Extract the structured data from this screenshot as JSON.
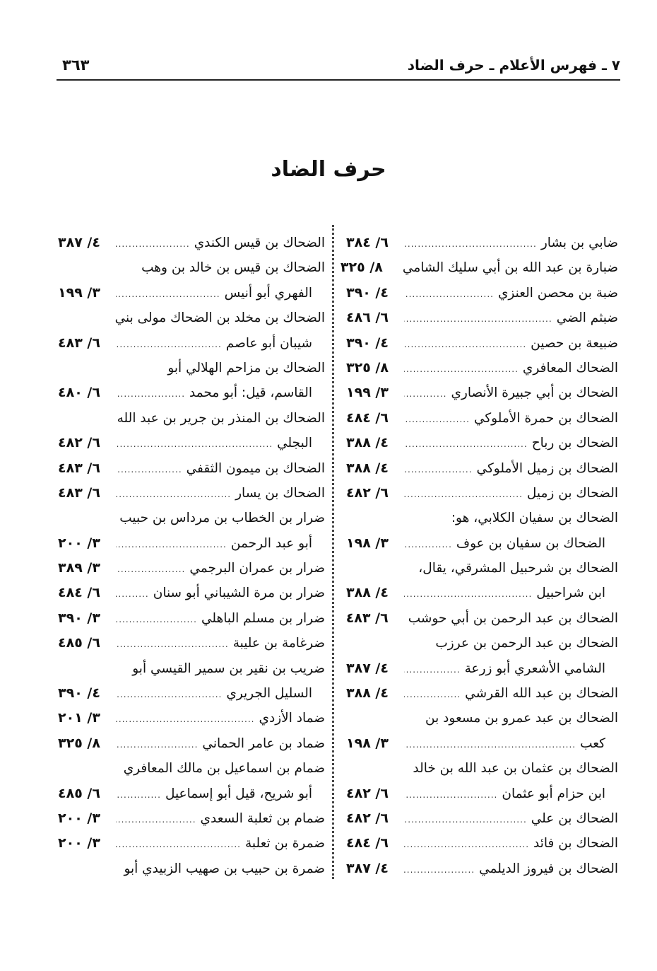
{
  "header": {
    "running_title": "٧ ـ فهرس الأعلام ـ حرف الضاد",
    "page_number": "٣٦٣"
  },
  "section_title": "حرف الضاد",
  "right_column": [
    {
      "text": "ضابي بن بشار",
      "ref": "٦/ ٣٨٤"
    },
    {
      "text": "ضبارة بن عبد الله بن أبي سليك الشامي",
      "ref": "٨/ ٣٢٥"
    },
    {
      "text": "ضبة بن محصن العنزي",
      "ref": "٤/ ٣٩٠"
    },
    {
      "text": "ضبثم الضي",
      "ref": "٦/ ٤٨٦"
    },
    {
      "text": "ضبيعة بن حصين",
      "ref": "٤/ ٣٩٠"
    },
    {
      "text": "الضحاك المعافري",
      "ref": "٨/ ٣٢٥"
    },
    {
      "text": "الضحاك بن أبي جبيرة الأنصاري",
      "ref": "٣/ ١٩٩"
    },
    {
      "text": "الضحاك بن حمرة الأملوكي",
      "ref": "٦/ ٤٨٤"
    },
    {
      "text": "الضحاك بن رباح",
      "ref": "٤/ ٣٨٨"
    },
    {
      "text": "الضحاك بن زميل الأملوكي",
      "ref": "٤/ ٣٨٨"
    },
    {
      "text": "الضحاك بن زميل",
      "ref": "٦/ ٤٨٢"
    },
    {
      "text": "الضحاك بن سفيان الكلابي، هو:",
      "ref": ""
    },
    {
      "text": "الضحاك بن سفيان بن عوف",
      "ref": "٣/ ١٩٨",
      "indent": true
    },
    {
      "text": "الضحاك بن شرحبيل المشرقي، يقال،",
      "ref": ""
    },
    {
      "text": "ابن شراحبيل",
      "ref": "٤/ ٣٨٨",
      "indent": true
    },
    {
      "text": "الضحاك بن عبد الرحمن بن أبي حوشب",
      "ref": "٦/ ٤٨٣"
    },
    {
      "text": "الضحاك بن عبد الرحمن بن عرزب",
      "ref": ""
    },
    {
      "text": "الشامي الأشعري أبو زرعة",
      "ref": "٤/ ٣٨٧",
      "indent": true
    },
    {
      "text": "الضحاك بن عبد الله القرشي",
      "ref": "٤/ ٣٨٨"
    },
    {
      "text": "الضحاك بن عبد عمرو بن مسعود بن",
      "ref": ""
    },
    {
      "text": "كعب",
      "ref": "٣/ ١٩٨",
      "indent": true
    },
    {
      "text": "الضحاك بن عثمان بن عبد الله بن خالد",
      "ref": ""
    },
    {
      "text": "ابن حزام أبو عثمان",
      "ref": "٦/ ٤٨٢",
      "indent": true
    },
    {
      "text": "الضحاك بن علي",
      "ref": "٦/ ٤٨٢"
    },
    {
      "text": "الضحاك بن فائد",
      "ref": "٦/ ٤٨٤"
    },
    {
      "text": "الضحاك بن فيروز الديلمي",
      "ref": "٤/ ٣٨٧"
    }
  ],
  "left_column": [
    {
      "text": "الضحاك بن قيس الكندي",
      "ref": "٤/ ٣٨٧"
    },
    {
      "text": "الضحاك بن قيس بن خالد بن وهب",
      "ref": ""
    },
    {
      "text": "الفهري أبو أنيس",
      "ref": "٣/ ١٩٩",
      "indent": true
    },
    {
      "text": "الضحاك بن مخلد بن الضحاك مولى بني",
      "ref": ""
    },
    {
      "text": "شيبان أبو عاصم",
      "ref": "٦/ ٤٨٣",
      "indent": true
    },
    {
      "text": "الضحاك بن مزاحم الهلالي أبو",
      "ref": ""
    },
    {
      "text": "القاسم، قيل: أبو محمد",
      "ref": "٦/ ٤٨٠",
      "indent": true
    },
    {
      "text": "الضحاك بن المنذر بن جرير بن عبد الله",
      "ref": ""
    },
    {
      "text": "البجلي",
      "ref": "٦/ ٤٨٢",
      "indent": true
    },
    {
      "text": "الضحاك بن ميمون الثقفي",
      "ref": "٦/ ٤٨٣"
    },
    {
      "text": "الضحاك بن يسار",
      "ref": "٦/ ٤٨٣"
    },
    {
      "text": "ضرار بن الخطاب بن مرداس بن حبيب",
      "ref": ""
    },
    {
      "text": "أبو عبد الرحمن",
      "ref": "٣/ ٢٠٠",
      "indent": true
    },
    {
      "text": "ضرار بن عمران البرجمي",
      "ref": "٣/ ٣٨٩"
    },
    {
      "text": "ضرار بن مرة الشيباني أبو سنان",
      "ref": "٦/ ٤٨٤"
    },
    {
      "text": "ضرار بن مسلم الباهلي",
      "ref": "٣/ ٣٩٠"
    },
    {
      "text": "ضرغامة بن عليبة",
      "ref": "٦/ ٤٨٥"
    },
    {
      "text": "ضريب بن نقير بن سمير القيسي أبو",
      "ref": ""
    },
    {
      "text": "السليل الجريري",
      "ref": "٤/ ٣٩٠",
      "indent": true
    },
    {
      "text": "ضماد الأزدي",
      "ref": "٣/ ٢٠١"
    },
    {
      "text": "ضماد بن عامر الحماني",
      "ref": "٨/ ٣٢٥"
    },
    {
      "text": "ضمام بن اسماعيل بن مالك المعافري",
      "ref": ""
    },
    {
      "text": "أبو شريح، قيل أبو إسماعيل",
      "ref": "٦/ ٤٨٥",
      "indent": true
    },
    {
      "text": "ضمام بن ثعلبة السعدي",
      "ref": "٣/ ٢٠٠"
    },
    {
      "text": "ضمرة بن ثعلبة",
      "ref": "٣/ ٢٠٠"
    },
    {
      "text": "ضمرة بن حبيب بن صهيب الزبيدي أبو",
      "ref": ""
    }
  ]
}
